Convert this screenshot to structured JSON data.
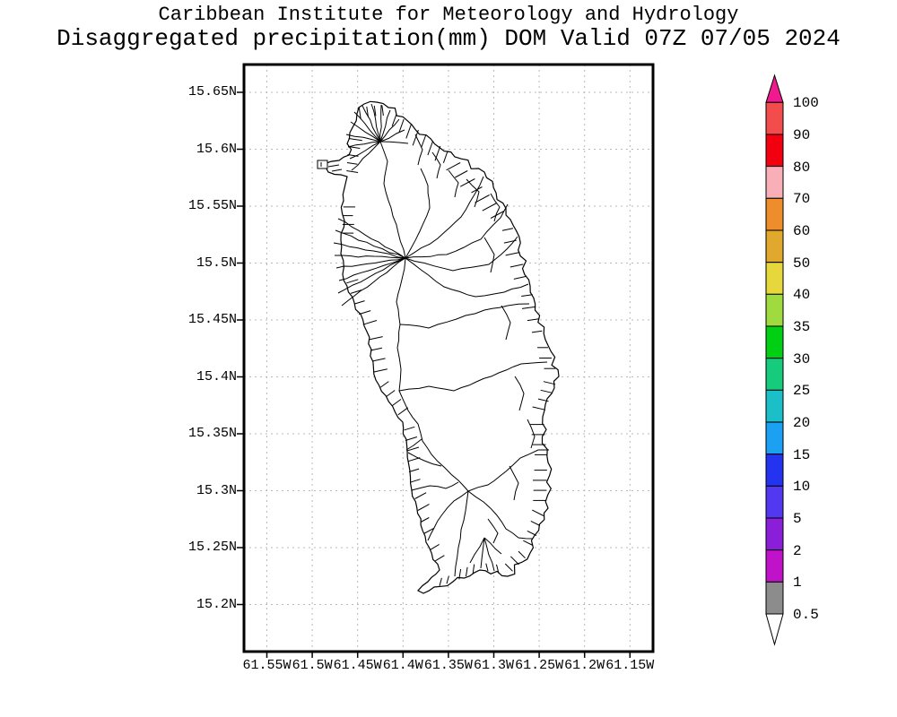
{
  "title": {
    "line1": "Caribbean Institute for Meteorology and Hydrology",
    "line2": "Disaggregated precipitation(mm) DOM Valid 07Z 07/05 2024"
  },
  "map": {
    "y_axis": {
      "labels": [
        "15.65N",
        "15.6N",
        "15.55N",
        "15.5N",
        "15.45N",
        "15.4N",
        "15.35N",
        "15.3N",
        "15.25N",
        "15.2N"
      ]
    },
    "x_axis": {
      "labels": [
        "61.55W",
        "61.5W",
        "61.45W",
        "61.4W",
        "61.35W",
        "61.3W",
        "61.25W",
        "61.2W",
        "61.15W"
      ]
    },
    "grid_color": "#b8b8b8",
    "coast_color": "#000000",
    "land_fill": "#ffffff"
  },
  "colorbar": {
    "labels": [
      "100",
      "90",
      "80",
      "70",
      "60",
      "50",
      "40",
      "35",
      "30",
      "25",
      "20",
      "15",
      "10",
      "5",
      "2",
      "1",
      "0.5"
    ],
    "segment_colors": [
      "#f24c4c",
      "#f2000f",
      "#f8afb8",
      "#ee8d2b",
      "#e0a92e",
      "#e5d73c",
      "#9fdb3f",
      "#00cf14",
      "#16cb7c",
      "#1cbfc8",
      "#1ba0f2",
      "#2433f0",
      "#5238ee",
      "#8b1fd9",
      "#c013c9",
      "#8c8c8c"
    ],
    "arrow_top_color": "#ef1a8e",
    "arrow_bottom_color": "#ffffff"
  }
}
